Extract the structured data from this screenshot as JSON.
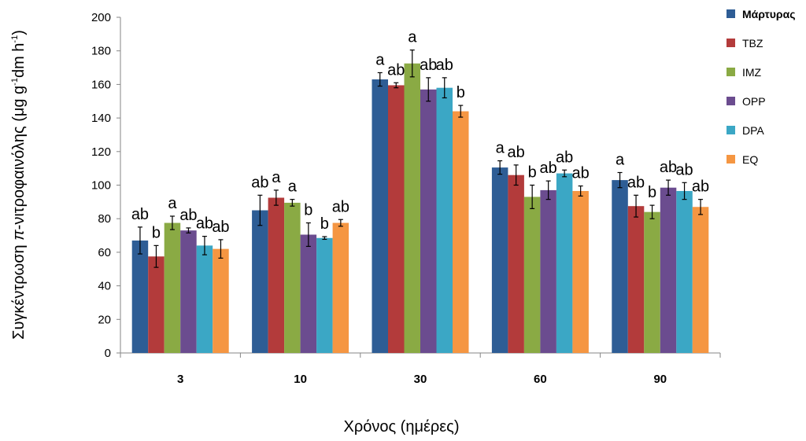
{
  "chart_data": {
    "type": "bar",
    "title": "",
    "xlabel": "Χρόνος (ημέρες)",
    "ylabel_prefix": "Συγκέντρωση ",
    "ylabel_italic": "π",
    "ylabel_mid": "-νιτροφαινόλης (μg g",
    "ylabel_sup1": "-1",
    "ylabel_mid2": "dm h",
    "ylabel_sup2": "-1",
    "ylabel_suffix": ")",
    "ylim": [
      0,
      200
    ],
    "yticks": [
      0,
      20,
      40,
      60,
      80,
      100,
      120,
      140,
      160,
      180,
      200
    ],
    "grid": false,
    "legend_position": "right",
    "categories": [
      "3",
      "10",
      "30",
      "60",
      "90"
    ],
    "series": [
      {
        "name": "Μάρτυρας",
        "color": "#2E5D95",
        "values": [
          67,
          85,
          163,
          110.5,
          103
        ],
        "errors": [
          8,
          9,
          4,
          4,
          4.5
        ],
        "letters": [
          "ab",
          "ab",
          "a",
          "a",
          "a"
        ]
      },
      {
        "name": "TBZ",
        "color": "#B33B3B",
        "values": [
          57.5,
          92.5,
          159.5,
          106,
          87.5
        ],
        "errors": [
          6.5,
          4.5,
          1.5,
          6,
          6.5
        ],
        "letters": [
          "b",
          "a",
          "ab",
          "ab",
          "ab"
        ]
      },
      {
        "name": "IMZ",
        "color": "#8AAA44",
        "values": [
          77.5,
          89.5,
          172.5,
          93,
          84
        ],
        "errors": [
          4,
          2,
          8,
          7,
          4
        ],
        "letters": [
          "a",
          "a",
          "a",
          "b",
          "b"
        ]
      },
      {
        "name": "OPP",
        "color": "#6B4C8F",
        "values": [
          73,
          70.5,
          157,
          97,
          98.5
        ],
        "errors": [
          1.5,
          7,
          7,
          5.5,
          4.5
        ],
        "letters": [
          "ab",
          "b",
          "ab",
          "ab",
          "ab"
        ]
      },
      {
        "name": "DPA",
        "color": "#3BA7C5",
        "values": [
          64,
          68.5,
          158,
          107,
          96.5
        ],
        "errors": [
          5.5,
          0.8,
          6,
          2,
          5
        ],
        "letters": [
          "ab",
          "b",
          "ab",
          "ab",
          "ab"
        ]
      },
      {
        "name": "EQ",
        "color": "#F59642",
        "values": [
          62,
          77.5,
          144,
          96.5,
          87
        ],
        "errors": [
          5.5,
          2,
          3.5,
          3,
          4.5
        ],
        "letters": [
          "ab",
          "ab",
          "b",
          "ab",
          "ab"
        ]
      }
    ]
  }
}
